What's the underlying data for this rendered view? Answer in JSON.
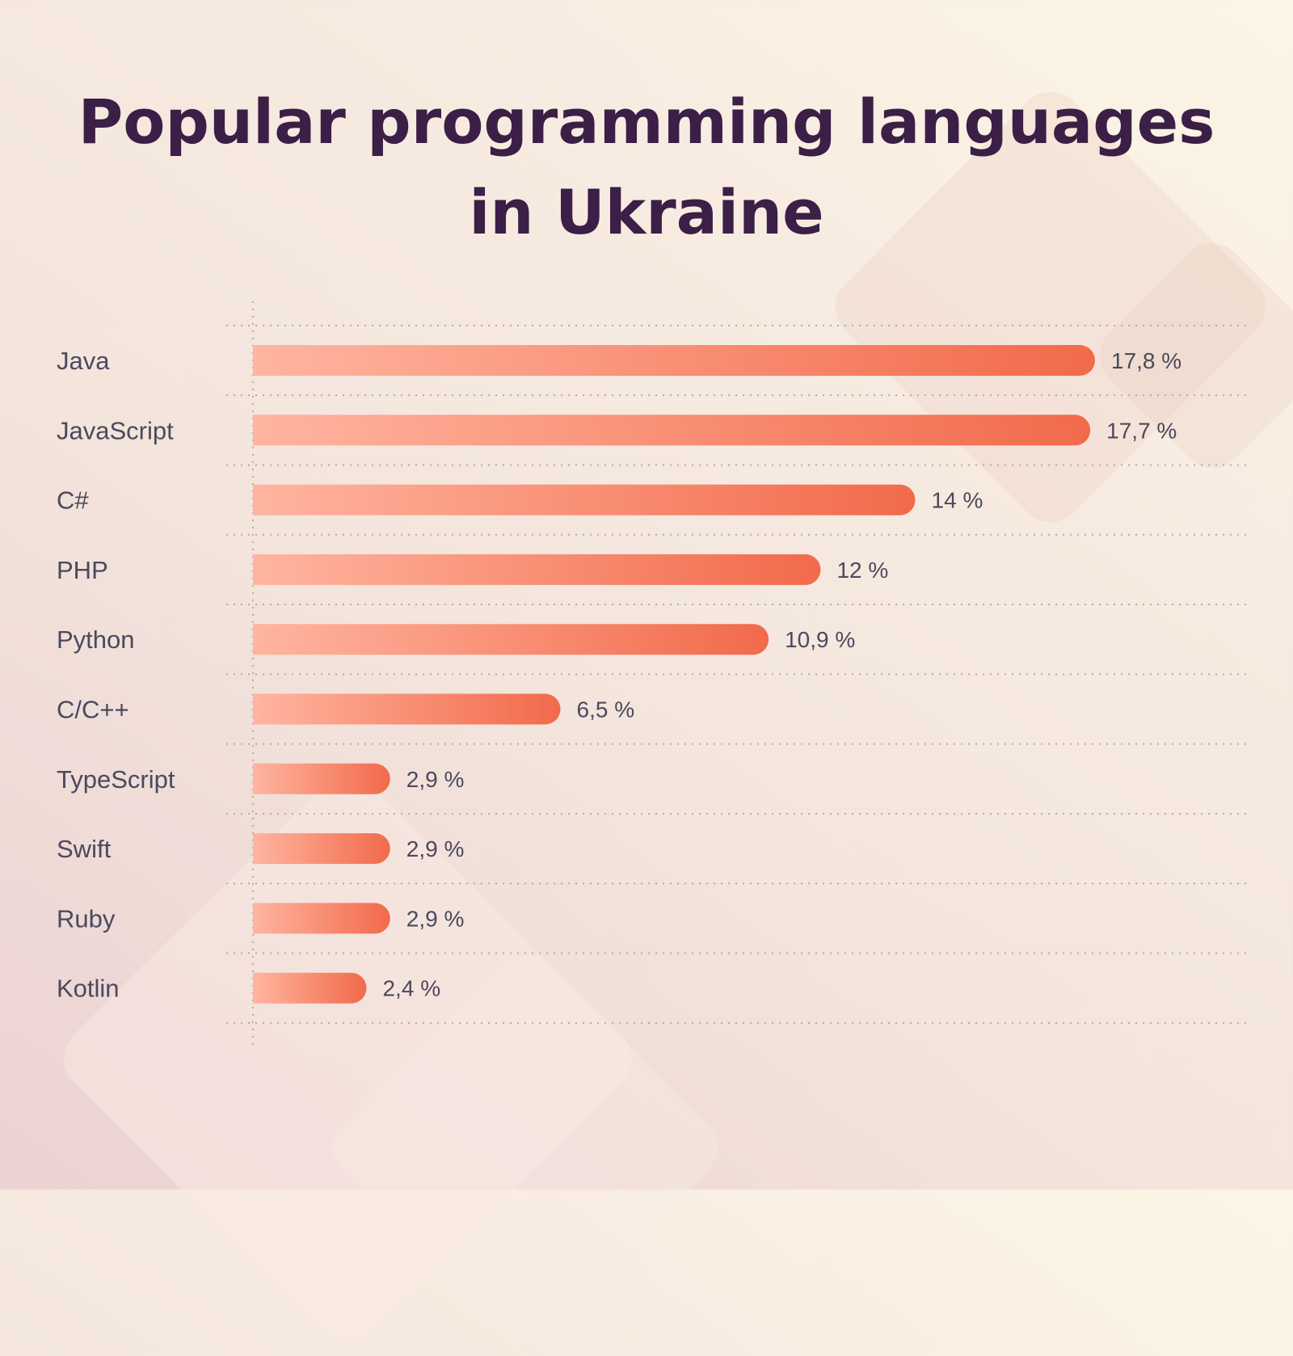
{
  "chart_data": {
    "type": "bar",
    "orientation": "horizontal",
    "title": "Popular programming languages in Ukraine",
    "title_lines": [
      "Popular programming languages",
      "in Ukraine"
    ],
    "categories": [
      "Java",
      "JavaScript",
      "C#",
      "PHP",
      "Python",
      "C/C++",
      "TypeScript",
      "Swift",
      "Ruby",
      "Kotlin"
    ],
    "values": [
      17.8,
      17.7,
      14,
      12,
      10.9,
      6.5,
      2.9,
      2.9,
      2.9,
      2.4
    ],
    "value_labels": [
      "17,8 %",
      "17,7 %",
      "14 %",
      "12 %",
      "10,9 %",
      "6,5 %",
      "2,9 %",
      "2,9 %",
      "2,9 %",
      "2,4 %"
    ],
    "unit": "%",
    "xlim": [
      0,
      17.8
    ],
    "grid": true,
    "legend": "none",
    "colors": {
      "bar_start": "#ffb5a0",
      "bar_end": "#f26a4b",
      "title": "#3b1f46",
      "text": "#4a4a5e"
    }
  }
}
